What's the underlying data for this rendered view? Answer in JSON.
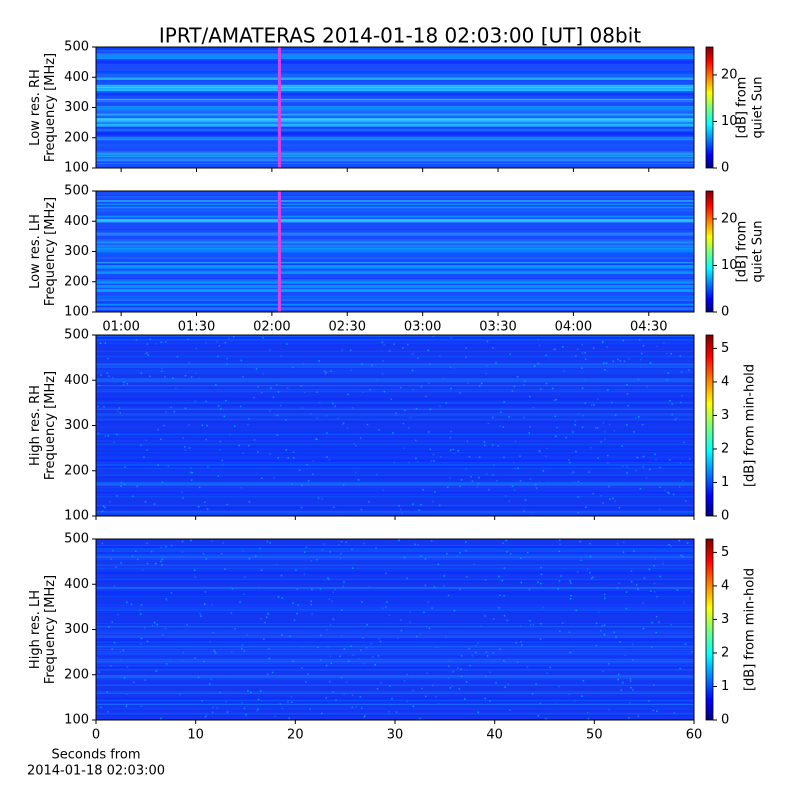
{
  "chart_data": [
    {
      "type": "heatmap",
      "title": "IPRT/AMATERAS 2014-01-18 02:03:00 [UT]   08bit",
      "ylabel": [
        "Low res. RH",
        "Frequency [MHz]"
      ],
      "ylim": [
        100,
        500
      ],
      "yticks": [
        100,
        200,
        300,
        400,
        500
      ],
      "xlim": [
        50,
        288
      ],
      "xticks": [
        {
          "value": 60,
          "label": "01:00"
        },
        {
          "value": 90,
          "label": "01:30"
        },
        {
          "value": 120,
          "label": "02:00"
        },
        {
          "value": 150,
          "label": "02:30"
        },
        {
          "value": 180,
          "label": "03:00"
        },
        {
          "value": 210,
          "label": "03:30"
        },
        {
          "value": 240,
          "label": "04:00"
        },
        {
          "value": 270,
          "label": "04:30"
        }
      ],
      "xtick_labels": false,
      "cursor_x": 123,
      "cursor_color": "#e040e0",
      "colorbar": {
        "label": [
          "[dB] from",
          "quiet Sun"
        ],
        "lim": [
          0,
          26
        ],
        "ticks": [
          0,
          10,
          20
        ]
      }
    },
    {
      "type": "heatmap",
      "ylabel": [
        "Low res. LH",
        "Frequency [MHz]"
      ],
      "ylim": [
        100,
        500
      ],
      "yticks": [
        100,
        200,
        300,
        400,
        500
      ],
      "xlim": [
        50,
        288
      ],
      "xticks": [
        {
          "value": 60,
          "label": "01:00"
        },
        {
          "value": 90,
          "label": "01:30"
        },
        {
          "value": 120,
          "label": "02:00"
        },
        {
          "value": 150,
          "label": "02:30"
        },
        {
          "value": 180,
          "label": "03:00"
        },
        {
          "value": 210,
          "label": "03:30"
        },
        {
          "value": 240,
          "label": "04:00"
        },
        {
          "value": 270,
          "label": "04:30"
        }
      ],
      "xtick_labels": true,
      "cursor_x": 123,
      "cursor_color": "#e040e0",
      "colorbar": {
        "label": [
          "[dB] from",
          "quiet Sun"
        ],
        "lim": [
          0,
          26
        ],
        "ticks": [
          0,
          10,
          20
        ]
      }
    },
    {
      "type": "heatmap",
      "ylabel": [
        "High res. RH",
        "Frequency [MHz]"
      ],
      "ylim": [
        100,
        500
      ],
      "yticks": [
        100,
        200,
        300,
        400,
        500
      ],
      "xlim": [
        0,
        60
      ],
      "xticks": [
        0,
        10,
        20,
        30,
        40,
        50,
        60
      ],
      "xtick_labels": false,
      "colorbar": {
        "label": [
          "[dB] from min-hold"
        ],
        "lim": [
          0,
          5.4
        ],
        "ticks": [
          0,
          1,
          2,
          3,
          4,
          5
        ]
      }
    },
    {
      "type": "heatmap",
      "ylabel": [
        "High res. LH",
        "Frequency [MHz]"
      ],
      "ylim": [
        100,
        500
      ],
      "yticks": [
        100,
        200,
        300,
        400,
        500
      ],
      "xlim": [
        0,
        60
      ],
      "xticks": [
        0,
        10,
        20,
        30,
        40,
        50,
        60
      ],
      "xtick_labels": true,
      "xlabel": [
        "Seconds from",
        "2014-01-18 02:03:00"
      ],
      "colorbar": {
        "label": [
          "[dB] from min-hold"
        ],
        "lim": [
          0,
          5.4
        ],
        "ticks": [
          0,
          1,
          2,
          3,
          4,
          5
        ]
      }
    }
  ]
}
